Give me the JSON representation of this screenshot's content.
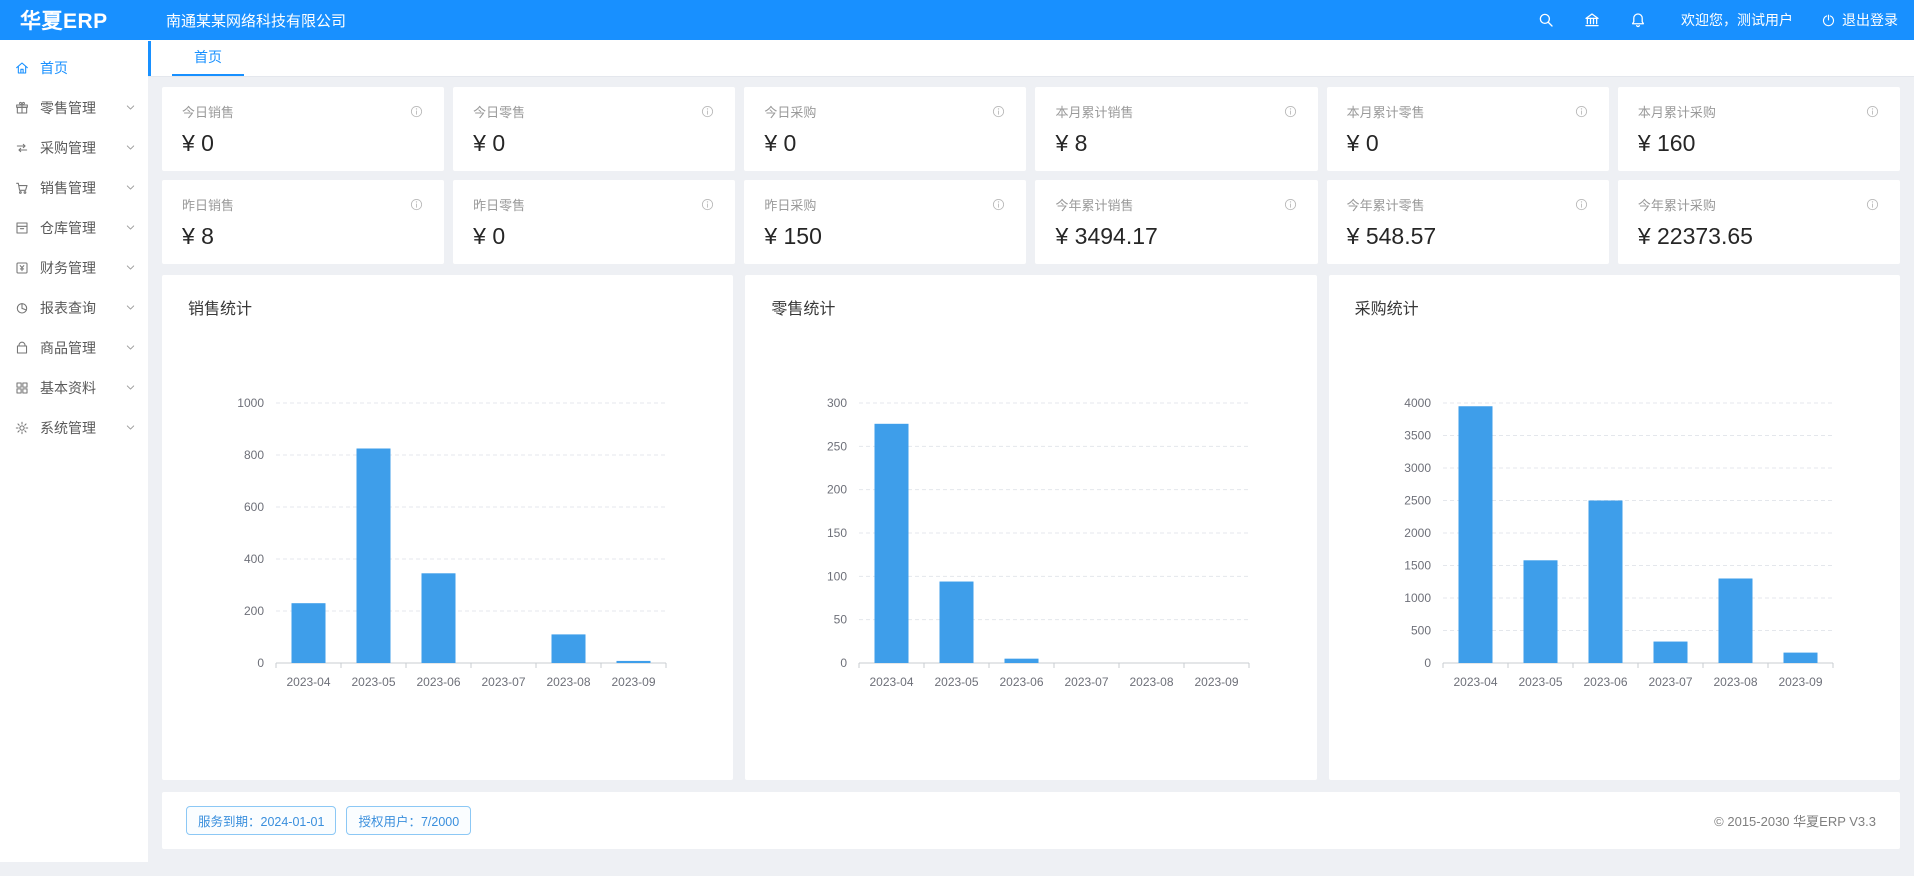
{
  "colors": {
    "primary": "#1890ff",
    "bar": "#3e9eea"
  },
  "header": {
    "logo": "华夏ERP",
    "company": "南通某某网络科技有限公司",
    "icons": [
      "search",
      "bank",
      "bell"
    ],
    "welcome": "欢迎您，测试用户",
    "logout_label": "退出登录"
  },
  "sidebar": {
    "items": [
      {
        "label": "首页",
        "icon": "home",
        "active": true,
        "hasChildren": false
      },
      {
        "label": "零售管理",
        "icon": "gift",
        "active": false,
        "hasChildren": true
      },
      {
        "label": "采购管理",
        "icon": "swap",
        "active": false,
        "hasChildren": true
      },
      {
        "label": "销售管理",
        "icon": "cart",
        "active": false,
        "hasChildren": true
      },
      {
        "label": "仓库管理",
        "icon": "archive",
        "active": false,
        "hasChildren": true
      },
      {
        "label": "财务管理",
        "icon": "money",
        "active": false,
        "hasChildren": true
      },
      {
        "label": "报表查询",
        "icon": "pie",
        "active": false,
        "hasChildren": true
      },
      {
        "label": "商品管理",
        "icon": "bag",
        "active": false,
        "hasChildren": true
      },
      {
        "label": "基本资料",
        "icon": "grid",
        "active": false,
        "hasChildren": true
      },
      {
        "label": "系统管理",
        "icon": "gear",
        "active": false,
        "hasChildren": true
      }
    ]
  },
  "tabs": [
    {
      "label": "首页",
      "active": true
    }
  ],
  "stats": [
    [
      {
        "label": "今日销售",
        "value": "¥ 0"
      },
      {
        "label": "今日零售",
        "value": "¥ 0"
      },
      {
        "label": "今日采购",
        "value": "¥ 0"
      },
      {
        "label": "本月累计销售",
        "value": "¥ 8"
      },
      {
        "label": "本月累计零售",
        "value": "¥ 0"
      },
      {
        "label": "本月累计采购",
        "value": "¥ 160"
      }
    ],
    [
      {
        "label": "昨日销售",
        "value": "¥ 8"
      },
      {
        "label": "昨日零售",
        "value": "¥ 0"
      },
      {
        "label": "昨日采购",
        "value": "¥ 150"
      },
      {
        "label": "今年累计销售",
        "value": "¥ 3494.17"
      },
      {
        "label": "今年累计零售",
        "value": "¥ 548.57"
      },
      {
        "label": "今年累计采购",
        "value": "¥ 22373.65"
      }
    ]
  ],
  "chart_data": [
    {
      "type": "bar",
      "title": "销售统计",
      "categories": [
        "2023-04",
        "2023-05",
        "2023-06",
        "2023-07",
        "2023-08",
        "2023-09"
      ],
      "values": [
        230,
        825,
        345,
        0,
        110,
        8
      ],
      "ylim": [
        0,
        1000
      ],
      "ytick_step": 200,
      "grid": "dashed",
      "legend": "none"
    },
    {
      "type": "bar",
      "title": "零售统计",
      "categories": [
        "2023-04",
        "2023-05",
        "2023-06",
        "2023-07",
        "2023-08",
        "2023-09"
      ],
      "values": [
        276,
        94,
        5,
        0,
        0,
        0
      ],
      "ylim": [
        0,
        300
      ],
      "ytick_step": 50,
      "grid": "dashed",
      "legend": "none"
    },
    {
      "type": "bar",
      "title": "采购统计",
      "categories": [
        "2023-04",
        "2023-05",
        "2023-06",
        "2023-07",
        "2023-08",
        "2023-09"
      ],
      "values": [
        3950,
        1580,
        2500,
        330,
        1300,
        160
      ],
      "ylim": [
        0,
        4000
      ],
      "ytick_step": 500,
      "grid": "dashed",
      "legend": "none"
    }
  ],
  "footer": {
    "badges": [
      {
        "label": "服务到期：2024-01-01"
      },
      {
        "label": "授权用户：7/2000"
      }
    ],
    "copyright": "© 2015-2030 华夏ERP V3.3"
  }
}
